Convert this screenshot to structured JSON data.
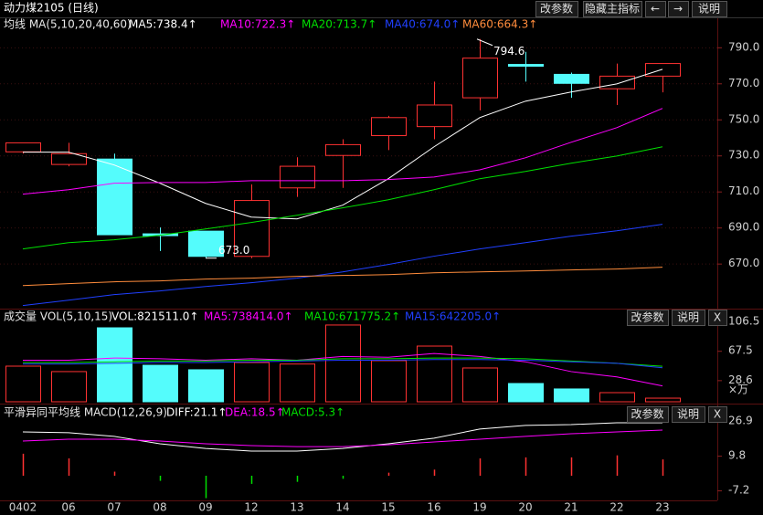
{
  "chart_data": [
    {
      "type": "candlestick",
      "title": "动力煤2105 (日线)",
      "indicator": "均线 MA(5,10,20,40,60)",
      "buttons": [
        "改参数",
        "隐藏主指标",
        "←",
        "→",
        "说明"
      ],
      "categories": [
        "0402",
        "06",
        "07",
        "08",
        "09",
        "12",
        "13",
        "14",
        "15",
        "16",
        "19",
        "20",
        "21",
        "22",
        "23"
      ],
      "open": [
        732,
        725,
        728,
        686.5,
        688,
        674,
        712,
        730,
        741,
        746,
        762,
        780.5,
        775,
        767,
        774
      ],
      "high": [
        737,
        737,
        731,
        690,
        688,
        714,
        729,
        739,
        752,
        771,
        794.6,
        787.5,
        776,
        781,
        781
      ],
      "low": [
        731,
        724,
        686,
        677,
        673,
        673,
        707,
        712,
        733,
        739,
        755,
        771,
        762,
        758,
        765
      ],
      "close": [
        737,
        731,
        686,
        685.5,
        674,
        705,
        724,
        736,
        751,
        758,
        784,
        779.5,
        770,
        774,
        781
      ],
      "up_color": "#ff3232",
      "down_color": "#54fcfc",
      "hollow_up": true,
      "series": [
        {
          "name": "MA5:738.4↑",
          "color": "#ffffff",
          "values": [
            731.8,
            731.8,
            724.7,
            714.6,
            703.4,
            695.8,
            694.8,
            702.4,
            717.1,
            734.8,
            751,
            760.1,
            765.2,
            769.7,
            777.8
          ]
        },
        {
          "name": "MA10:722.3↑",
          "color": "#ff00ff",
          "values": [
            708.5,
            711,
            714.6,
            715,
            715,
            716,
            716,
            716,
            716.6,
            718,
            722,
            728.7,
            737.3,
            745.4,
            756.1
          ]
        },
        {
          "name": "MA20:713.7↑",
          "color": "#00e000",
          "values": [
            678.1,
            681.6,
            683.2,
            685.7,
            689.2,
            692.8,
            696.8,
            700.9,
            705.4,
            711,
            717.1,
            721.1,
            725.7,
            729.7,
            734.8
          ]
        },
        {
          "name": "MA40:674.0↑",
          "color": "#2040ff",
          "values": [
            646.7,
            649.7,
            652.8,
            654.8,
            657.3,
            659.4,
            661.9,
            665.4,
            669.5,
            674.1,
            678.1,
            681.6,
            685.2,
            688.2,
            691.8
          ]
        },
        {
          "name": "MA60:664.3↑",
          "color": "#ff8c3c",
          "values": [
            657.8,
            658.9,
            659.9,
            660.4,
            661.4,
            661.9,
            662.9,
            663.4,
            663.9,
            664.9,
            665.4,
            665.9,
            666.5,
            667,
            668
          ]
        }
      ],
      "annotations": [
        {
          "text": "794.6",
          "value": 794.6
        },
        {
          "text": "673.0",
          "value": 673
        }
      ],
      "ylim": [
        645,
        797
      ],
      "yticks": [
        {
          "value": 790,
          "label": "790.0"
        },
        {
          "value": 770,
          "label": "770.0"
        },
        {
          "value": 750,
          "label": "750.0"
        },
        {
          "value": 730,
          "label": "730.0"
        },
        {
          "value": 710,
          "label": "710.0"
        },
        {
          "value": 690,
          "label": "690.0"
        },
        {
          "value": 670,
          "label": "670.0"
        }
      ],
      "grid": true
    },
    {
      "type": "bar",
      "indicator": "成交量 VOL(5,10,15)",
      "buttons": [
        "改参数",
        "说明",
        "X"
      ],
      "series": [
        {
          "name": "VOL:821511.0↑",
          "color": "#ffffff",
          "values": [
            47.2,
            40,
            98,
            48.4,
            42.4,
            52,
            50,
            101.7,
            54.5,
            73.8,
            44.8,
            24.2,
            17,
            12.1,
            4.8
          ],
          "colors": [
            "#ff3232",
            "#ff3232",
            "#54fcfc",
            "#54fcfc",
            "#54fcfc",
            "#ff3232",
            "#ff3232",
            "#ff3232",
            "#ff3232",
            "#ff3232",
            "#ff3232",
            "#54fcfc",
            "#54fcfc",
            "#ff3232",
            "#ff3232"
          ]
        },
        {
          "name": "MA5:738414.0↑",
          "color": "#ff00ff",
          "values": [
            55,
            55,
            58,
            57,
            55,
            57,
            55,
            60,
            59,
            64,
            60,
            53,
            40,
            33,
            21
          ]
        },
        {
          "name": "MA10:671775.2↑",
          "color": "#00e000",
          "values": [
            52,
            52,
            53,
            54,
            54,
            55,
            55,
            57,
            57,
            58,
            58,
            57,
            54,
            51,
            47
          ]
        },
        {
          "name": "MA15:642205.0↑",
          "color": "#2040ff",
          "values": [
            50,
            50,
            51,
            52,
            52,
            53,
            54,
            55,
            55,
            56,
            56,
            55,
            53,
            51,
            45
          ]
        }
      ],
      "ylim": [
        0,
        121
      ],
      "yticks": [
        106.5,
        67.5,
        28.6
      ],
      "y_unit": "×万"
    },
    {
      "type": "macd",
      "indicator": "平滑异同平均线 MACD(12,26,9)",
      "buttons": [
        "改参数",
        "说明",
        "X"
      ],
      "series": [
        {
          "name": "DIFF:21.1↑",
          "color": "#ffffff",
          "values": [
            21.5,
            21.1,
            19.3,
            15.7,
            13.4,
            12.1,
            12.1,
            13.4,
            15.7,
            18.4,
            22.9,
            24.7,
            25.1,
            26,
            26
          ]
        },
        {
          "name": "DEA:18.5↑",
          "color": "#ff00ff",
          "values": [
            17,
            17.9,
            17.9,
            17,
            15.7,
            14.8,
            14.3,
            14.3,
            15.2,
            16.6,
            17.9,
            19.3,
            20.6,
            21.5,
            22.4
          ]
        },
        {
          "name": "MACD:5.3↑",
          "color": "#00e000",
          "up_color": "#ff3232",
          "down_color": "#00e000",
          "values": [
            10.8,
            8.5,
            2,
            -2.5,
            -11,
            -4,
            -3,
            -1.5,
            1.5,
            3,
            8.5,
            9,
            9,
            10,
            8
          ]
        }
      ],
      "ylim": [
        -12.1,
        33.6
      ],
      "yticks": [
        26.9,
        9.8,
        -7.2
      ]
    }
  ]
}
